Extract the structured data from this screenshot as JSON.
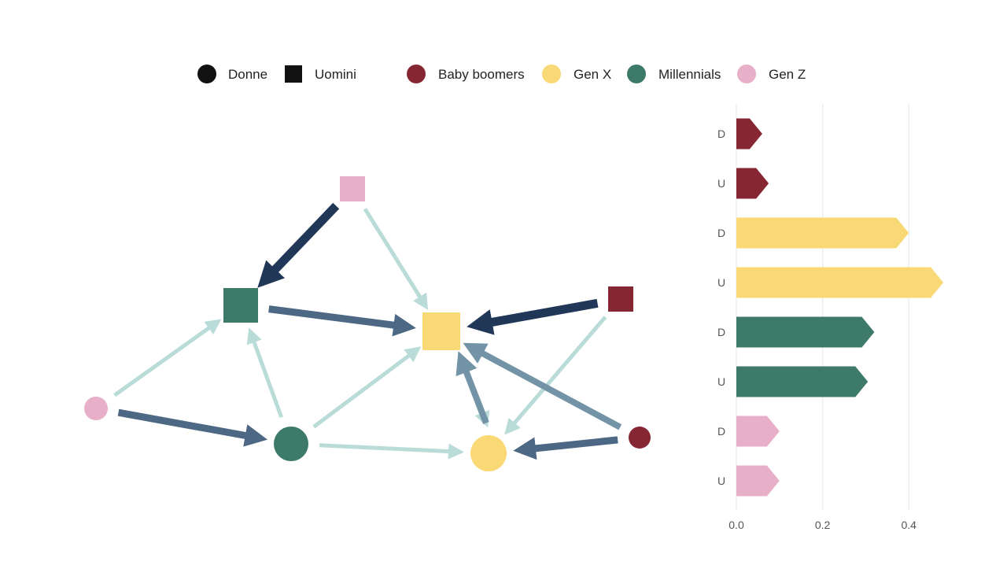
{
  "colors": {
    "baby_boomers": "#862633",
    "gen_x": "#f9d976",
    "millennials": "#3d7a6a",
    "gen_z": "#e8afc8",
    "shape_legend": "#111111",
    "edge_light": "#b9dcd8",
    "edge_mid": "#7393a7",
    "edge_strong": "#4c6884",
    "edge_dark": "#203758",
    "grid": "#ebebeb"
  },
  "legend": {
    "shapes": [
      {
        "label": "Donne",
        "shape": "circle"
      },
      {
        "label": "Uomini",
        "shape": "square"
      }
    ],
    "groups": [
      {
        "label": "Baby boomers",
        "key": "baby_boomers"
      },
      {
        "label": "Gen X",
        "key": "gen_x"
      },
      {
        "label": "Millennials",
        "key": "millennials"
      },
      {
        "label": "Gen Z",
        "key": "gen_z"
      }
    ]
  },
  "chart_data": [
    {
      "type": "network",
      "nodes": [
        {
          "id": "genz_u",
          "group": "gen_z",
          "gender": "U"
        },
        {
          "id": "mill_u",
          "group": "millennials",
          "gender": "U"
        },
        {
          "id": "genx_u",
          "group": "gen_x",
          "gender": "U"
        },
        {
          "id": "boom_u",
          "group": "baby_boomers",
          "gender": "U"
        },
        {
          "id": "genz_d",
          "group": "gen_z",
          "gender": "D"
        },
        {
          "id": "mill_d",
          "group": "millennials",
          "gender": "D"
        },
        {
          "id": "genx_d",
          "group": "gen_x",
          "gender": "D"
        },
        {
          "id": "boom_d",
          "group": "baby_boomers",
          "gender": "D"
        }
      ],
      "edges": [
        {
          "from": "genz_u",
          "to": "mill_u",
          "strength": "dark"
        },
        {
          "from": "genz_u",
          "to": "genx_u",
          "strength": "light"
        },
        {
          "from": "mill_u",
          "to": "genx_u",
          "strength": "strong"
        },
        {
          "from": "boom_u",
          "to": "genx_u",
          "strength": "dark"
        },
        {
          "from": "boom_u",
          "to": "genx_d",
          "strength": "light"
        },
        {
          "from": "genz_d",
          "to": "mill_u",
          "strength": "light"
        },
        {
          "from": "genz_d",
          "to": "mill_d",
          "strength": "strong"
        },
        {
          "from": "mill_d",
          "to": "mill_u",
          "strength": "light"
        },
        {
          "from": "mill_d",
          "to": "genx_u",
          "strength": "light"
        },
        {
          "from": "mill_d",
          "to": "genx_d",
          "strength": "light"
        },
        {
          "from": "genx_u",
          "to": "genx_d",
          "strength": "light"
        },
        {
          "from": "genx_d",
          "to": "genx_u",
          "strength": "mid"
        },
        {
          "from": "boom_d",
          "to": "genx_u",
          "strength": "mid"
        },
        {
          "from": "boom_d",
          "to": "genx_d",
          "strength": "strong"
        }
      ]
    },
    {
      "type": "bar",
      "orientation": "horizontal",
      "categories": [
        "D",
        "U",
        "D",
        "U",
        "D",
        "U",
        "D",
        "U"
      ],
      "groups": [
        "baby_boomers",
        "baby_boomers",
        "gen_x",
        "gen_x",
        "millennials",
        "millennials",
        "gen_z",
        "gen_z"
      ],
      "values": [
        0.06,
        0.075,
        0.4,
        0.48,
        0.32,
        0.305,
        0.1,
        0.1
      ],
      "xlim": [
        0,
        0.52
      ],
      "xticks": [
        "0.0",
        "0.2",
        "0.4"
      ],
      "xtick_values": [
        0,
        0.2,
        0.4
      ],
      "grid": true,
      "title": "",
      "xlabel": "",
      "ylabel": ""
    }
  ]
}
